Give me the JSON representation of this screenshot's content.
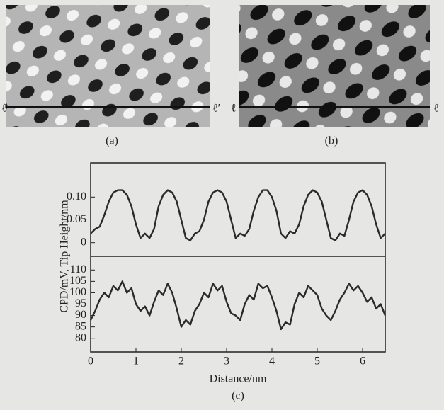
{
  "panels": [
    {
      "label": "(a)",
      "line_start": "ℓ",
      "line_end": "ℓ′"
    },
    {
      "label": "(b)",
      "line_start": "ℓ",
      "line_end": "ℓ"
    }
  ],
  "caption": "(c)",
  "chart_data": [
    {
      "type": "line",
      "ylabel": "CPD/mV, Tip Height/nm",
      "x": [
        0,
        0.1,
        0.2,
        0.3,
        0.4,
        0.5,
        0.6,
        0.7,
        0.8,
        0.9,
        1.0,
        1.1,
        1.2,
        1.3,
        1.4,
        1.5,
        1.6,
        1.7,
        1.8,
        1.9,
        2.0,
        2.1,
        2.2,
        2.3,
        2.4,
        2.5,
        2.6,
        2.7,
        2.8,
        2.9,
        3.0,
        3.1,
        3.2,
        3.3,
        3.4,
        3.5,
        3.6,
        3.7,
        3.8,
        3.9,
        4.0,
        4.1,
        4.2,
        4.3,
        4.4,
        4.5,
        4.6,
        4.7,
        4.8,
        4.9,
        5.0,
        5.1,
        5.2,
        5.3,
        5.4,
        5.5,
        5.6,
        5.7,
        5.8,
        5.9,
        6.0,
        6.1,
        6.2,
        6.3,
        6.4,
        6.5
      ],
      "values": [
        0.02,
        0.03,
        0.035,
        0.06,
        0.09,
        0.11,
        0.115,
        0.115,
        0.105,
        0.08,
        0.04,
        0.01,
        0.02,
        0.01,
        0.03,
        0.08,
        0.105,
        0.115,
        0.11,
        0.09,
        0.05,
        0.01,
        0.005,
        0.02,
        0.025,
        0.05,
        0.09,
        0.11,
        0.115,
        0.11,
        0.09,
        0.05,
        0.01,
        0.02,
        0.015,
        0.03,
        0.07,
        0.1,
        0.115,
        0.115,
        0.1,
        0.07,
        0.02,
        0.01,
        0.025,
        0.02,
        0.04,
        0.08,
        0.105,
        0.115,
        0.11,
        0.09,
        0.05,
        0.01,
        0.005,
        0.02,
        0.015,
        0.05,
        0.09,
        0.11,
        0.115,
        0.105,
        0.08,
        0.04,
        0.01,
        0.02
      ],
      "color": "#2a2a2a",
      "xlim": [
        0,
        6.5
      ],
      "ylim": [
        -0.03,
        0.175
      ],
      "yticks": [
        0,
        0.05,
        {
          "value": 0.1,
          "label": "0.10"
        }
      ]
    },
    {
      "type": "line",
      "xlabel": "Distance/nm",
      "x": [
        0,
        0.1,
        0.2,
        0.3,
        0.4,
        0.5,
        0.6,
        0.7,
        0.8,
        0.9,
        1.0,
        1.1,
        1.2,
        1.3,
        1.4,
        1.5,
        1.6,
        1.7,
        1.8,
        1.9,
        2.0,
        2.1,
        2.2,
        2.3,
        2.4,
        2.5,
        2.6,
        2.7,
        2.8,
        2.9,
        3.0,
        3.1,
        3.2,
        3.3,
        3.4,
        3.5,
        3.6,
        3.7,
        3.8,
        3.9,
        4.0,
        4.1,
        4.2,
        4.3,
        4.4,
        4.5,
        4.6,
        4.7,
        4.8,
        4.9,
        5.0,
        5.1,
        5.2,
        5.3,
        5.4,
        5.5,
        5.6,
        5.7,
        5.8,
        5.9,
        6.0,
        6.1,
        6.2,
        6.3,
        6.4,
        6.5
      ],
      "values": [
        88,
        92,
        97,
        100,
        98,
        103,
        101,
        105,
        100,
        102,
        95,
        92,
        94,
        90,
        96,
        101,
        99,
        104,
        100,
        93,
        85,
        88,
        86,
        92,
        95,
        100,
        98,
        104,
        101,
        103,
        96,
        91,
        90,
        88,
        95,
        99,
        97,
        104,
        102,
        103,
        98,
        92,
        84,
        87,
        86,
        95,
        100,
        98,
        103,
        101,
        99,
        93,
        90,
        88,
        92,
        97,
        100,
        104,
        101,
        103,
        100,
        96,
        98,
        93,
        95,
        90
      ],
      "color": "#2a2a2a",
      "xlim": [
        0,
        6.5
      ],
      "ylim": [
        74,
        116
      ],
      "xticks": [
        0,
        1,
        2,
        3,
        4,
        5,
        6
      ],
      "yticks": [
        80,
        85,
        90,
        95,
        100,
        105,
        110
      ]
    }
  ]
}
